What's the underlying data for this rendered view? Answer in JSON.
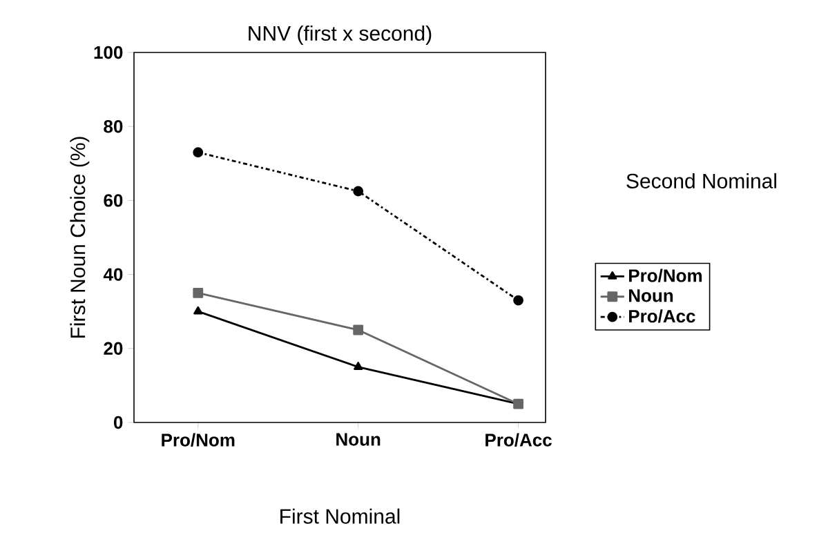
{
  "chart_data": {
    "type": "line",
    "title": "NNV (first x second)",
    "xlabel": "First Nominal",
    "ylabel": "First Noun Choice (%)",
    "legend_title": "Second Nominal",
    "categories": [
      "Pro/Nom",
      "Noun",
      "Pro/Acc"
    ],
    "series": [
      {
        "name": "Pro/Nom",
        "color": "#000000",
        "values": [
          30,
          15,
          5
        ],
        "marker": "triangle",
        "line_style": "solid"
      },
      {
        "name": "Noun",
        "color": "#666666",
        "values": [
          35,
          25,
          5
        ],
        "marker": "square",
        "line_style": "solid"
      },
      {
        "name": "Pro/Acc",
        "color": "#000000",
        "values": [
          73,
          62.5,
          33
        ],
        "marker": "circle",
        "line_style": "dashdot"
      }
    ],
    "ylim": [
      0,
      100
    ],
    "yticks": [
      0,
      20,
      40,
      60,
      80,
      100
    ],
    "grid": false,
    "legend": "right"
  }
}
